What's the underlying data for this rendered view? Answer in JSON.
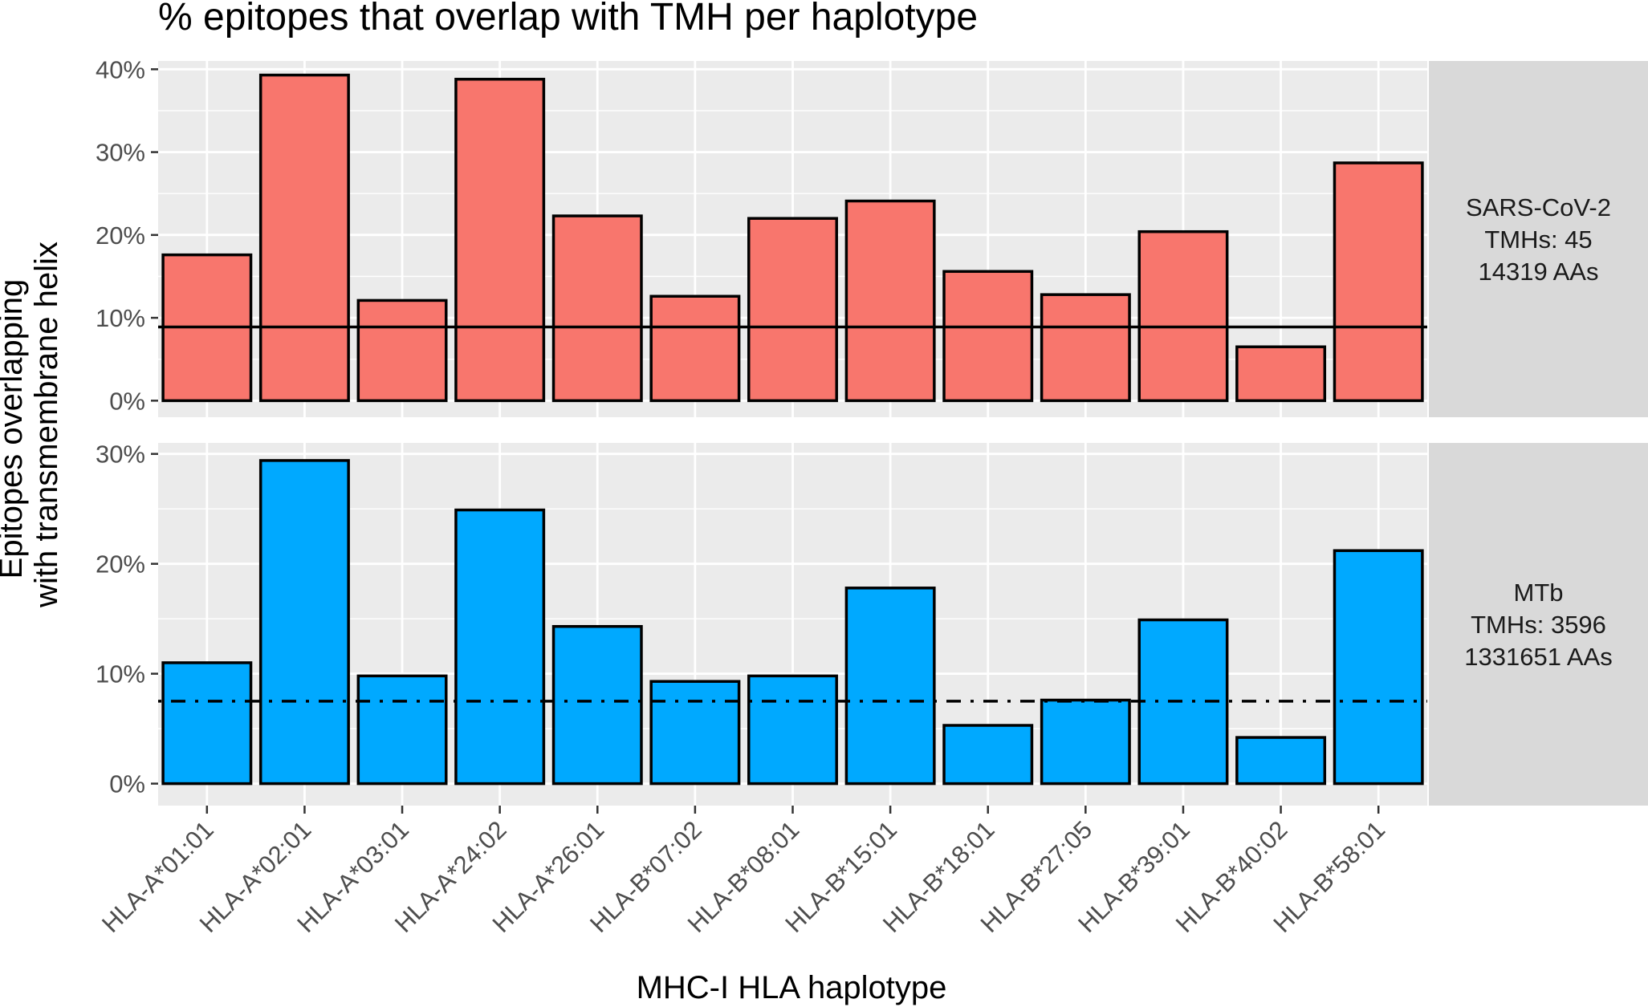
{
  "chart_data": {
    "type": "bar",
    "title": "% epitopes that overlap with TMH per haplotype",
    "xlabel": "MHC-I HLA haplotype",
    "ylabel_lines": [
      "Epitopes overlapping",
      "with transmembrane helix"
    ],
    "categories": [
      "HLA-A*01:01",
      "HLA-A*02:01",
      "HLA-A*03:01",
      "HLA-A*24:02",
      "HLA-A*26:01",
      "HLA-B*07:02",
      "HLA-B*08:01",
      "HLA-B*15:01",
      "HLA-B*18:01",
      "HLA-B*27:05",
      "HLA-B*39:01",
      "HLA-B*40:02",
      "HLA-B*58:01"
    ],
    "y_format": "percent",
    "grid": true,
    "panels": [
      {
        "strip_lines": [
          "SARS-CoV-2",
          "TMHs: 45",
          "14319 AAs"
        ],
        "fill": "#F8766D",
        "values": [
          0.176,
          0.393,
          0.121,
          0.388,
          0.223,
          0.126,
          0.22,
          0.241,
          0.156,
          0.128,
          0.204,
          0.065,
          0.287
        ],
        "reference_line": {
          "value": 0.089,
          "style": "solid"
        },
        "ylim": [
          -0.02,
          0.41
        ],
        "yticks": [
          0,
          0.1,
          0.2,
          0.3,
          0.4
        ],
        "ytick_labels": [
          "0%",
          "10%",
          "20%",
          "30%",
          "40%"
        ]
      },
      {
        "strip_lines": [
          "MTb",
          "TMHs: 3596",
          "1331651 AAs"
        ],
        "fill": "#00A9FF",
        "values": [
          0.11,
          0.294,
          0.098,
          0.249,
          0.143,
          0.093,
          0.098,
          0.178,
          0.053,
          0.076,
          0.149,
          0.042,
          0.212
        ],
        "reference_line": {
          "value": 0.075,
          "style": "dotdash"
        },
        "ylim": [
          -0.02,
          0.31
        ],
        "yticks": [
          0,
          0.1,
          0.2,
          0.3
        ],
        "ytick_labels": [
          "0%",
          "10%",
          "20%",
          "30%"
        ]
      }
    ]
  },
  "colors": {
    "panel_background": "#EBEBEB",
    "grid": "#FFFFFF",
    "strip_background": "#D9D9D9",
    "bar_outline": "#000000",
    "tick_text": "#4D4D4D"
  }
}
